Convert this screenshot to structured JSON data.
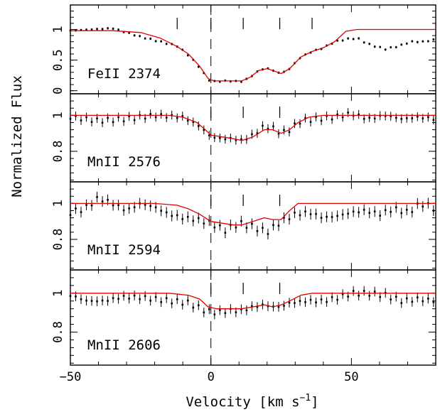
{
  "chart_data": {
    "type": "line",
    "xlabel": "Velocity [km s",
    "xlabel_sup": "−1",
    "xlabel_close": "]",
    "ylabel": "Normalized Flux",
    "xlim": [
      -50,
      80
    ],
    "x_ticks": [
      -50,
      0,
      50
    ],
    "velocity_component_markers": [
      -12,
      0,
      11.5,
      24.5,
      36
    ],
    "series_colors": {
      "data": "#000000",
      "model": "#e00000"
    },
    "panels": [
      {
        "label": "FeII 2374",
        "ylim": [
          -0.05,
          1.4
        ],
        "y_ticks": [
          0,
          0.5,
          1
        ],
        "y_tick_labels": [
          "0",
          "0.5",
          "1"
        ],
        "component_markers": [
          -12,
          0,
          11.5,
          24.5,
          36
        ],
        "error": 0.02,
        "model": [
          [
            -50,
            0.98
          ],
          [
            -35,
            0.98
          ],
          [
            -25,
            0.95
          ],
          [
            -18,
            0.86
          ],
          [
            -12,
            0.72
          ],
          [
            -8,
            0.6
          ],
          [
            -4,
            0.4
          ],
          [
            -1,
            0.2
          ],
          [
            1,
            0.16
          ],
          [
            6,
            0.16
          ],
          [
            11,
            0.16
          ],
          [
            14,
            0.22
          ],
          [
            17,
            0.33
          ],
          [
            20,
            0.36
          ],
          [
            22,
            0.33
          ],
          [
            25,
            0.28
          ],
          [
            28,
            0.36
          ],
          [
            32,
            0.55
          ],
          [
            36,
            0.64
          ],
          [
            40,
            0.7
          ],
          [
            44,
            0.8
          ],
          [
            48,
            0.97
          ],
          [
            52,
            1.0
          ],
          [
            80,
            1.0
          ]
        ],
        "data": [
          [
            -50,
            0.98
          ],
          [
            -35,
            1.02
          ],
          [
            -25,
            0.88
          ],
          [
            -18,
            0.8
          ],
          [
            -12,
            0.73
          ],
          [
            -8,
            0.58
          ],
          [
            -4,
            0.38
          ],
          [
            -1,
            0.18
          ],
          [
            1,
            0.15
          ],
          [
            6,
            0.16
          ],
          [
            11,
            0.15
          ],
          [
            14,
            0.22
          ],
          [
            17,
            0.33
          ],
          [
            20,
            0.37
          ],
          [
            22,
            0.33
          ],
          [
            25,
            0.28
          ],
          [
            28,
            0.36
          ],
          [
            32,
            0.55
          ],
          [
            36,
            0.64
          ],
          [
            40,
            0.7
          ],
          [
            44,
            0.8
          ],
          [
            48,
            0.84
          ],
          [
            52,
            0.86
          ],
          [
            56,
            0.76
          ],
          [
            62,
            0.68
          ],
          [
            67,
            0.73
          ],
          [
            71,
            0.8
          ],
          [
            76,
            0.8
          ],
          [
            80,
            0.84
          ]
        ]
      },
      {
        "label": "MnII 2576",
        "ylim": [
          0.63,
          1.12
        ],
        "y_ticks": [
          0.8,
          1.0
        ],
        "y_tick_labels": [
          "0.8",
          "1"
        ],
        "component_markers": [
          0,
          11.5,
          24.5
        ],
        "error": 0.025,
        "model": [
          [
            -50,
            1.0
          ],
          [
            -15,
            1.0
          ],
          [
            -10,
            0.99
          ],
          [
            -5,
            0.96
          ],
          [
            -2,
            0.92
          ],
          [
            0,
            0.89
          ],
          [
            4,
            0.88
          ],
          [
            8,
            0.87
          ],
          [
            11,
            0.86
          ],
          [
            15,
            0.88
          ],
          [
            19,
            0.92
          ],
          [
            22,
            0.92
          ],
          [
            25,
            0.9
          ],
          [
            28,
            0.92
          ],
          [
            31,
            0.96
          ],
          [
            35,
            0.99
          ],
          [
            40,
            1.0
          ],
          [
            80,
            1.0
          ]
        ],
        "data": [
          [
            -50,
            0.99
          ],
          [
            -40,
            0.97
          ],
          [
            -30,
            0.98
          ],
          [
            -20,
            1.0
          ],
          [
            -10,
            0.99
          ],
          [
            -4,
            0.94
          ],
          [
            0,
            0.88
          ],
          [
            4,
            0.87
          ],
          [
            8,
            0.87
          ],
          [
            11,
            0.86
          ],
          [
            15,
            0.89
          ],
          [
            19,
            0.94
          ],
          [
            22,
            0.93
          ],
          [
            25,
            0.9
          ],
          [
            28,
            0.92
          ],
          [
            32,
            0.97
          ],
          [
            38,
            0.98
          ],
          [
            44,
            0.99
          ],
          [
            50,
            1.01
          ],
          [
            56,
            0.98
          ],
          [
            62,
            1.0
          ],
          [
            68,
            0.98
          ],
          [
            74,
            0.99
          ],
          [
            80,
            0.98
          ]
        ]
      },
      {
        "label": "MnII 2594",
        "ylim": [
          0.63,
          1.12
        ],
        "y_ticks": [
          0.8,
          1.0
        ],
        "y_tick_labels": [
          "0.8",
          "1"
        ],
        "component_markers": [
          0,
          11.5,
          24.5
        ],
        "error": 0.03,
        "model": [
          [
            -50,
            1.0
          ],
          [
            -20,
            1.0
          ],
          [
            -12,
            0.99
          ],
          [
            -8,
            0.97
          ],
          [
            -4,
            0.94
          ],
          [
            0,
            0.9
          ],
          [
            4,
            0.89
          ],
          [
            8,
            0.88
          ],
          [
            11,
            0.88
          ],
          [
            15,
            0.9
          ],
          [
            19,
            0.92
          ],
          [
            22,
            0.91
          ],
          [
            25,
            0.91
          ],
          [
            28,
            0.96
          ],
          [
            31,
            1.0
          ],
          [
            80,
            1.0
          ]
        ],
        "data": [
          [
            -50,
            0.95
          ],
          [
            -45,
            0.97
          ],
          [
            -40,
            1.03
          ],
          [
            -35,
            1.0
          ],
          [
            -30,
            0.96
          ],
          [
            -25,
            1.0
          ],
          [
            -20,
            0.98
          ],
          [
            -15,
            0.94
          ],
          [
            -10,
            0.92
          ],
          [
            -5,
            0.91
          ],
          [
            0,
            0.89
          ],
          [
            5,
            0.85
          ],
          [
            10,
            0.89
          ],
          [
            15,
            0.87
          ],
          [
            20,
            0.84
          ],
          [
            25,
            0.9
          ],
          [
            30,
            0.94
          ],
          [
            35,
            0.95
          ],
          [
            40,
            0.92
          ],
          [
            45,
            0.93
          ],
          [
            50,
            0.95
          ],
          [
            55,
            0.96
          ],
          [
            60,
            0.94
          ],
          [
            65,
            0.97
          ],
          [
            70,
            0.95
          ],
          [
            75,
            1.0
          ],
          [
            80,
            0.97
          ]
        ]
      },
      {
        "label": "MnII 2606",
        "ylim": [
          0.63,
          1.12
        ],
        "y_ticks": [
          0.8,
          1.0
        ],
        "y_tick_labels": [
          "0.8",
          "1"
        ],
        "component_markers": [
          0,
          11.5,
          24.5
        ],
        "error": 0.025,
        "model": [
          [
            -50,
            1.0
          ],
          [
            -15,
            1.0
          ],
          [
            -8,
            0.99
          ],
          [
            -4,
            0.97
          ],
          [
            -1,
            0.93
          ],
          [
            2,
            0.92
          ],
          [
            6,
            0.92
          ],
          [
            11,
            0.92
          ],
          [
            15,
            0.93
          ],
          [
            19,
            0.94
          ],
          [
            22,
            0.93
          ],
          [
            25,
            0.94
          ],
          [
            28,
            0.96
          ],
          [
            32,
            0.99
          ],
          [
            36,
            1.0
          ],
          [
            80,
            1.0
          ]
        ],
        "data": [
          [
            -50,
            0.99
          ],
          [
            -44,
            0.96
          ],
          [
            -38,
            0.96
          ],
          [
            -32,
            0.98
          ],
          [
            -26,
            0.98
          ],
          [
            -20,
            0.97
          ],
          [
            -14,
            0.96
          ],
          [
            -8,
            0.95
          ],
          [
            -2,
            0.91
          ],
          [
            2,
            0.9
          ],
          [
            6,
            0.91
          ],
          [
            11,
            0.91
          ],
          [
            15,
            0.93
          ],
          [
            19,
            0.94
          ],
          [
            22,
            0.93
          ],
          [
            25,
            0.93
          ],
          [
            28,
            0.95
          ],
          [
            34,
            0.96
          ],
          [
            40,
            0.96
          ],
          [
            46,
            0.98
          ],
          [
            50,
            1.0
          ],
          [
            56,
            1.0
          ],
          [
            62,
            0.99
          ],
          [
            68,
            0.96
          ],
          [
            74,
            0.97
          ],
          [
            80,
            0.96
          ]
        ]
      }
    ]
  }
}
